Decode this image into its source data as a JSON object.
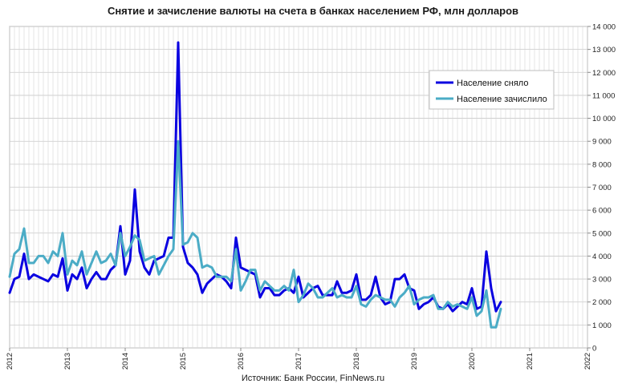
{
  "title": "Снятие и зачисление валюты на счета в банках населением РФ, млн долларов",
  "source": "Источник: Банк России, FinNews.ru",
  "chart_data": {
    "type": "line",
    "title": "Снятие и зачисление валюты на счета в банках населением РФ, млн долларов",
    "xlabel": "",
    "ylabel": "",
    "xlim": [
      2012,
      2022
    ],
    "ylim": [
      0,
      14000
    ],
    "yticks": [
      0,
      1000,
      2000,
      3000,
      4000,
      5000,
      6000,
      7000,
      8000,
      9000,
      10000,
      11000,
      12000,
      13000,
      14000
    ],
    "ytick_labels": [
      "0",
      "1 000",
      "2 000",
      "3 000",
      "4 000",
      "5 000",
      "6 000",
      "7 000",
      "8 000",
      "9 000",
      "10 000",
      "11 000",
      "12 000",
      "13 000",
      "14 000"
    ],
    "xticks": [
      "2012",
      "2013",
      "2014",
      "2015",
      "2016",
      "2017",
      "2018",
      "2019",
      "2020",
      "2021",
      "2022"
    ],
    "grid": true,
    "legend_position": "top-right",
    "x_start": "2012-01",
    "series": [
      {
        "name": "Население сняло",
        "color": "#0a00e0",
        "values": [
          2400,
          3000,
          3100,
          4100,
          3000,
          3200,
          3100,
          3000,
          2900,
          3200,
          3100,
          3900,
          2500,
          3200,
          3000,
          3500,
          2600,
          3000,
          3300,
          3000,
          3000,
          3400,
          3600,
          5300,
          3200,
          3800,
          6900,
          4200,
          3500,
          3200,
          3800,
          3900,
          4000,
          4800,
          4800,
          13300,
          4400,
          3700,
          3500,
          3200,
          2400,
          2800,
          3000,
          3200,
          3100,
          2900,
          2600,
          4800,
          3500,
          3400,
          3300,
          3200,
          2200,
          2600,
          2600,
          2300,
          2300,
          2500,
          2600,
          2400,
          3100,
          2200,
          2400,
          2600,
          2700,
          2300,
          2300,
          2300,
          2900,
          2400,
          2400,
          2500,
          3200,
          2100,
          2100,
          2300,
          3100,
          2200,
          1900,
          2000,
          3000,
          3000,
          3200,
          2600,
          2500,
          1700,
          1900,
          2000,
          2200,
          1800,
          1700,
          1900,
          1600,
          1800,
          2000,
          1900,
          2600,
          1700,
          1800,
          4200,
          2600,
          1600,
          2000
        ]
      },
      {
        "name": "Население зачислило",
        "color": "#4bacc6",
        "values": [
          3100,
          4100,
          4300,
          5200,
          3700,
          3700,
          4000,
          4000,
          3700,
          4200,
          4000,
          5000,
          3200,
          3800,
          3600,
          4200,
          3200,
          3700,
          4200,
          3700,
          3800,
          4100,
          3600,
          5000,
          4000,
          4400,
          4900,
          4700,
          3800,
          3900,
          4000,
          3200,
          3600,
          4000,
          4300,
          9000,
          4500,
          4600,
          5000,
          4800,
          3500,
          3600,
          3500,
          3100,
          3100,
          3100,
          2900,
          4300,
          2500,
          2900,
          3400,
          3400,
          2500,
          2900,
          2700,
          2500,
          2500,
          2700,
          2500,
          3400,
          2000,
          2300,
          2800,
          2600,
          2200,
          2200,
          2400,
          2600,
          2200,
          2300,
          2200,
          2200,
          2700,
          1900,
          1800,
          2100,
          2300,
          2200,
          2100,
          2100,
          1800,
          2200,
          2400,
          2700,
          1900,
          2100,
          2200,
          2200,
          2300,
          1700,
          1700,
          2000,
          1800,
          1900,
          1800,
          1700,
          2200,
          1400,
          1600,
          2500,
          900,
          900,
          1700
        ]
      }
    ]
  }
}
